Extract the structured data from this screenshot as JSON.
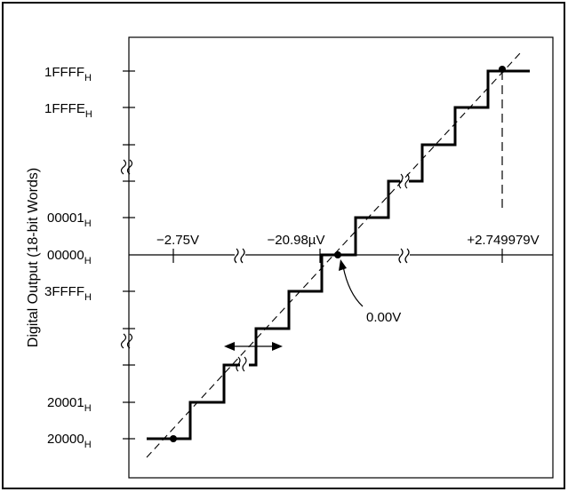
{
  "chart_data": {
    "type": "line",
    "ylabel": "Digital Output (18-bit Words)",
    "y_tick_labels": [
      {
        "main": "1FFFF",
        "sub": "H"
      },
      {
        "main": "1FFFE",
        "sub": "H"
      },
      {
        "main": "00001",
        "sub": "H"
      },
      {
        "main": "00000",
        "sub": "H"
      },
      {
        "main": "3FFFF",
        "sub": "H"
      },
      {
        "main": "20001",
        "sub": "H"
      },
      {
        "main": "20000",
        "sub": "H"
      }
    ],
    "x_tick_labels": [
      "−2.75V",
      "−20.98µV",
      "+2.749979V"
    ],
    "annotations": [
      {
        "text": "0.00V"
      }
    ],
    "transfer_function": {
      "x_min_label": "−2.75V",
      "x_zero_label": "0.00V",
      "x_max_label": "+2.749979V",
      "y_min_code": "20000",
      "y_zero_code": "00000",
      "y_max_code": "1FFFF",
      "ideal_line": "dashed",
      "breaks": [
        "x-axis",
        "y-axis",
        "staircase"
      ]
    },
    "grid": false
  },
  "colors": {
    "line": "#000000",
    "background": "#ffffff"
  }
}
